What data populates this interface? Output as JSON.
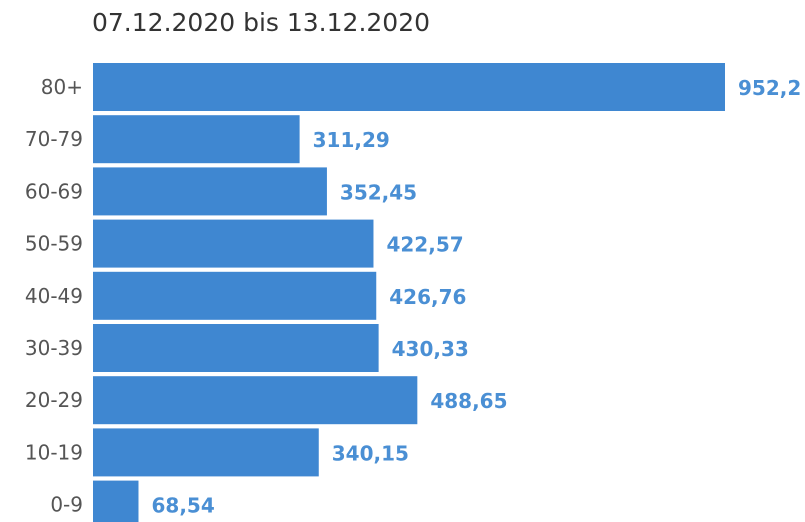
{
  "chart_data": {
    "type": "bar",
    "orientation": "horizontal",
    "title": "07.12.2020 bis 13.12.2020",
    "categories": [
      "80+",
      "70-79",
      "60-69",
      "50-59",
      "40-49",
      "30-39",
      "20-29",
      "10-19",
      "0-9"
    ],
    "values": [
      952.2,
      311.29,
      352.45,
      422.57,
      426.76,
      430.33,
      488.65,
      340.15,
      68.54
    ],
    "value_labels": [
      "952,2",
      "311,29",
      "352,45",
      "422,57",
      "426,76",
      "430,33",
      "488,65",
      "340,15",
      "68,54"
    ],
    "xlabel": "",
    "ylabel": "",
    "grid": false,
    "colors": {
      "bar": "#3f87d1",
      "value_label": "#4a8fd4",
      "tick_label": "#555555",
      "title": "#333333"
    }
  }
}
